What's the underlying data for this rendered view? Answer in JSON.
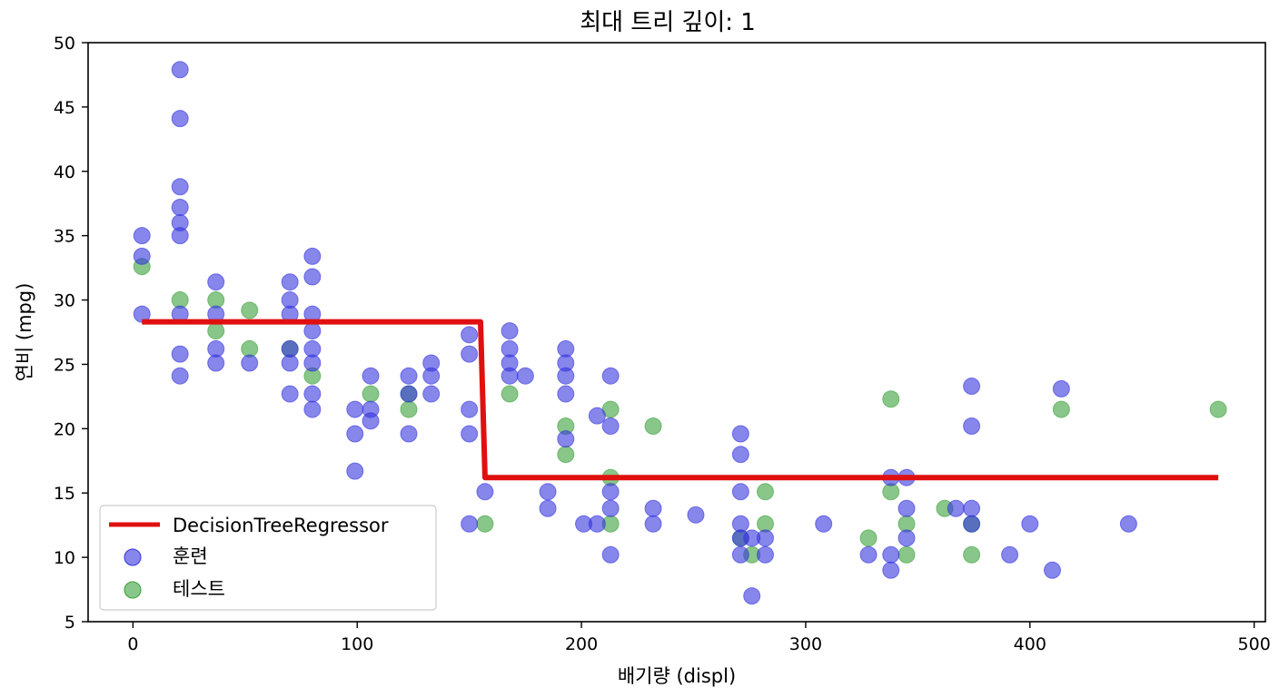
{
  "chart_data": {
    "type": "scatter",
    "title": "최대 트리 깊이: 1",
    "xlabel": "배기량 (displ)",
    "ylabel": "연비 (mpg)",
    "xlim": [
      -20,
      505
    ],
    "ylim": [
      5,
      50
    ],
    "xticks": [
      0,
      100,
      200,
      300,
      400,
      500
    ],
    "yticks": [
      5,
      10,
      15,
      20,
      25,
      30,
      35,
      40,
      45,
      50
    ],
    "grid": false,
    "legend_position": "lower-left",
    "series": [
      {
        "name": "DecisionTreeRegressor",
        "kind": "line",
        "color": "#e01010",
        "points": [
          [
            4,
            28.3
          ],
          [
            155,
            28.3
          ],
          [
            157,
            16.2
          ],
          [
            484,
            16.2
          ]
        ]
      },
      {
        "name": "훈련",
        "kind": "scatter",
        "color": "#3535dd",
        "points": [
          [
            4,
            35
          ],
          [
            4,
            33.4
          ],
          [
            4,
            28.9
          ],
          [
            21,
            47.9
          ],
          [
            21,
            44.1
          ],
          [
            21,
            38.8
          ],
          [
            21,
            37.2
          ],
          [
            21,
            36
          ],
          [
            21,
            35
          ],
          [
            21,
            28.9
          ],
          [
            21,
            25.8
          ],
          [
            21,
            24.1
          ],
          [
            37,
            31.4
          ],
          [
            37,
            28.9
          ],
          [
            37,
            26.2
          ],
          [
            37,
            25.1
          ],
          [
            52,
            25.1
          ],
          [
            70,
            31.4
          ],
          [
            70,
            30
          ],
          [
            70,
            28.9
          ],
          [
            70,
            26.2
          ],
          [
            70,
            25.1
          ],
          [
            70,
            22.7
          ],
          [
            80,
            33.4
          ],
          [
            80,
            31.8
          ],
          [
            80,
            28.9
          ],
          [
            80,
            27.6
          ],
          [
            80,
            26.2
          ],
          [
            80,
            25.1
          ],
          [
            80,
            22.7
          ],
          [
            80,
            21.5
          ],
          [
            99,
            21.5
          ],
          [
            99,
            19.6
          ],
          [
            99,
            16.7
          ],
          [
            106,
            24.1
          ],
          [
            106,
            21.5
          ],
          [
            106,
            20.6
          ],
          [
            123,
            24.1
          ],
          [
            123,
            22.7
          ],
          [
            123,
            19.6
          ],
          [
            133,
            25.1
          ],
          [
            133,
            24.1
          ],
          [
            133,
            22.7
          ],
          [
            150,
            27.3
          ],
          [
            150,
            25.8
          ],
          [
            150,
            21.5
          ],
          [
            150,
            19.6
          ],
          [
            150,
            12.6
          ],
          [
            157,
            15.1
          ],
          [
            168,
            27.6
          ],
          [
            168,
            26.2
          ],
          [
            168,
            25.1
          ],
          [
            168,
            24.1
          ],
          [
            175,
            24.1
          ],
          [
            185,
            15.1
          ],
          [
            185,
            13.8
          ],
          [
            193,
            26.2
          ],
          [
            193,
            25.1
          ],
          [
            193,
            24.1
          ],
          [
            193,
            22.7
          ],
          [
            193,
            19.2
          ],
          [
            201,
            12.6
          ],
          [
            207,
            21
          ],
          [
            207,
            12.6
          ],
          [
            213,
            24.1
          ],
          [
            213,
            20.2
          ],
          [
            213,
            15.1
          ],
          [
            213,
            13.8
          ],
          [
            213,
            10.2
          ],
          [
            232,
            13.8
          ],
          [
            232,
            12.6
          ],
          [
            251,
            13.3
          ],
          [
            271,
            19.6
          ],
          [
            271,
            18
          ],
          [
            271,
            15.1
          ],
          [
            271,
            12.6
          ],
          [
            271,
            11.5
          ],
          [
            271,
            10.2
          ],
          [
            276,
            11.5
          ],
          [
            276,
            7
          ],
          [
            282,
            11.5
          ],
          [
            282,
            10.2
          ],
          [
            308,
            12.6
          ],
          [
            328,
            10.2
          ],
          [
            338,
            16.2
          ],
          [
            338,
            10.2
          ],
          [
            338,
            9
          ],
          [
            345,
            16.2
          ],
          [
            345,
            13.8
          ],
          [
            345,
            11.5
          ],
          [
            367,
            13.8
          ],
          [
            374,
            23.3
          ],
          [
            374,
            20.2
          ],
          [
            374,
            13.8
          ],
          [
            374,
            12.6
          ],
          [
            391,
            10.2
          ],
          [
            400,
            12.6
          ],
          [
            410,
            9
          ],
          [
            414,
            23.1
          ],
          [
            444,
            12.6
          ]
        ]
      },
      {
        "name": "테스트",
        "kind": "scatter",
        "color": "#3aa03a",
        "points": [
          [
            4,
            32.6
          ],
          [
            21,
            30
          ],
          [
            37,
            30
          ],
          [
            37,
            27.6
          ],
          [
            52,
            29.2
          ],
          [
            52,
            26.2
          ],
          [
            70,
            26.2
          ],
          [
            80,
            24.1
          ],
          [
            106,
            22.7
          ],
          [
            123,
            22.7
          ],
          [
            123,
            21.5
          ],
          [
            157,
            12.6
          ],
          [
            168,
            22.7
          ],
          [
            193,
            20.2
          ],
          [
            193,
            18
          ],
          [
            213,
            21.5
          ],
          [
            213,
            16.2
          ],
          [
            213,
            12.6
          ],
          [
            232,
            20.2
          ],
          [
            271,
            11.5
          ],
          [
            276,
            10.2
          ],
          [
            282,
            15.1
          ],
          [
            282,
            12.6
          ],
          [
            328,
            11.5
          ],
          [
            338,
            22.3
          ],
          [
            338,
            15.1
          ],
          [
            345,
            12.6
          ],
          [
            345,
            10.2
          ],
          [
            362,
            13.8
          ],
          [
            374,
            12.6
          ],
          [
            374,
            10.2
          ],
          [
            414,
            21.5
          ],
          [
            484,
            21.5
          ]
        ]
      }
    ]
  }
}
